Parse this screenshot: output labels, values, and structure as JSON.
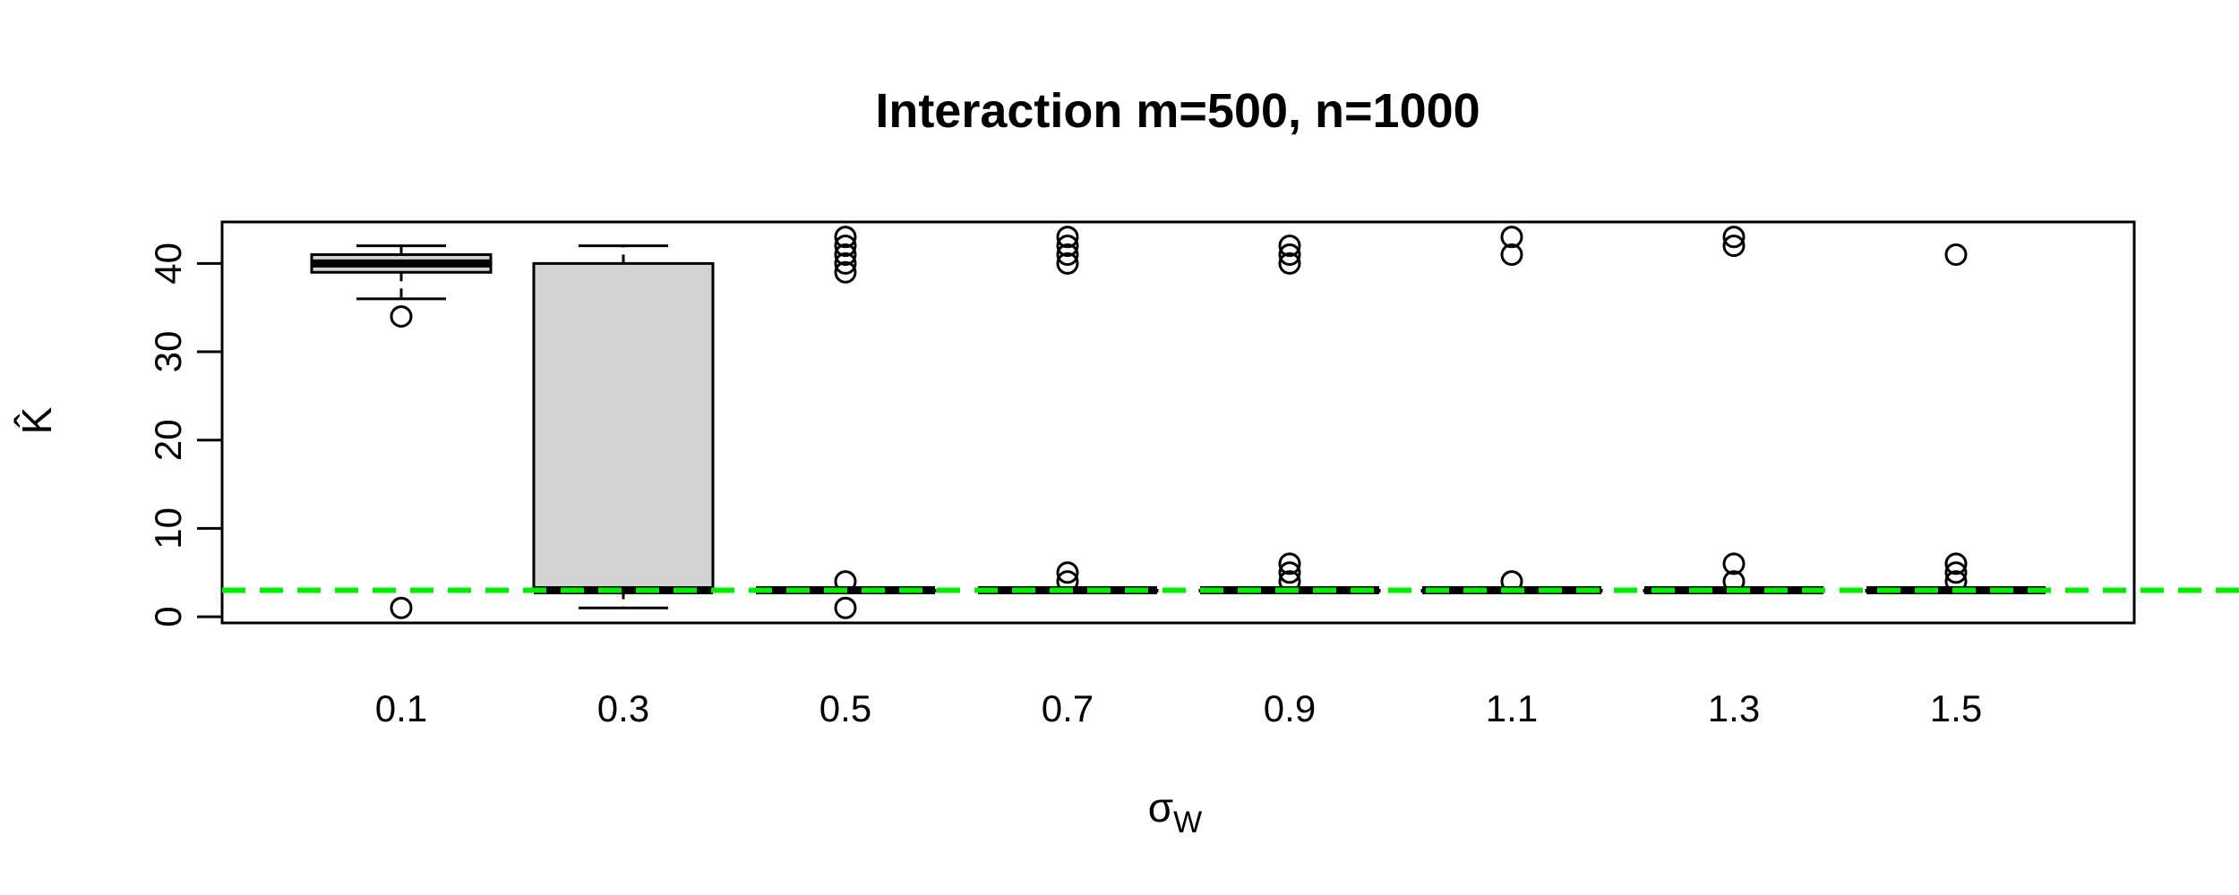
{
  "chart_data": {
    "type": "box",
    "title": "Interaction m=500, n=1000",
    "xlabel": {
      "main": "σ",
      "subscript": "W"
    },
    "ylabel": "K̂",
    "ylim": [
      -0.7,
      44.7
    ],
    "yticks": [
      0,
      10,
      20,
      30,
      40
    ],
    "categories": [
      "0.1",
      "0.3",
      "0.5",
      "0.7",
      "0.9",
      "1.1",
      "1.3",
      "1.5"
    ],
    "reference_line": {
      "y": 3,
      "color": "#00ee00",
      "style": "dashed"
    },
    "box_fill": "#d3d3d3",
    "boxes": [
      {
        "q1": 39,
        "median": 40,
        "q3": 41,
        "whisker_low": 36,
        "whisker_high": 42,
        "outliers": [
          34,
          1
        ]
      },
      {
        "q1": 3,
        "median": 3,
        "q3": 40,
        "whisker_low": 1,
        "whisker_high": 42,
        "outliers": []
      },
      {
        "q1": 3,
        "median": 3,
        "q3": 3,
        "whisker_low": 3,
        "whisker_high": 3,
        "outliers": [
          43,
          42,
          41,
          40,
          39,
          4,
          1
        ]
      },
      {
        "q1": 3,
        "median": 3,
        "q3": 3,
        "whisker_low": 3,
        "whisker_high": 3,
        "outliers": [
          43,
          42,
          41,
          40,
          5,
          4
        ]
      },
      {
        "q1": 3,
        "median": 3,
        "q3": 3,
        "whisker_low": 3,
        "whisker_high": 3,
        "outliers": [
          42,
          41,
          40,
          6,
          5,
          4
        ]
      },
      {
        "q1": 3,
        "median": 3,
        "q3": 3,
        "whisker_low": 3,
        "whisker_high": 3,
        "outliers": [
          43,
          41,
          4
        ]
      },
      {
        "q1": 3,
        "median": 3,
        "q3": 3,
        "whisker_low": 3,
        "whisker_high": 3,
        "outliers": [
          43,
          42,
          6,
          4
        ]
      },
      {
        "q1": 3,
        "median": 3,
        "q3": 3,
        "whisker_low": 3,
        "whisker_high": 3,
        "outliers": [
          41,
          6,
          5,
          4
        ]
      }
    ]
  }
}
